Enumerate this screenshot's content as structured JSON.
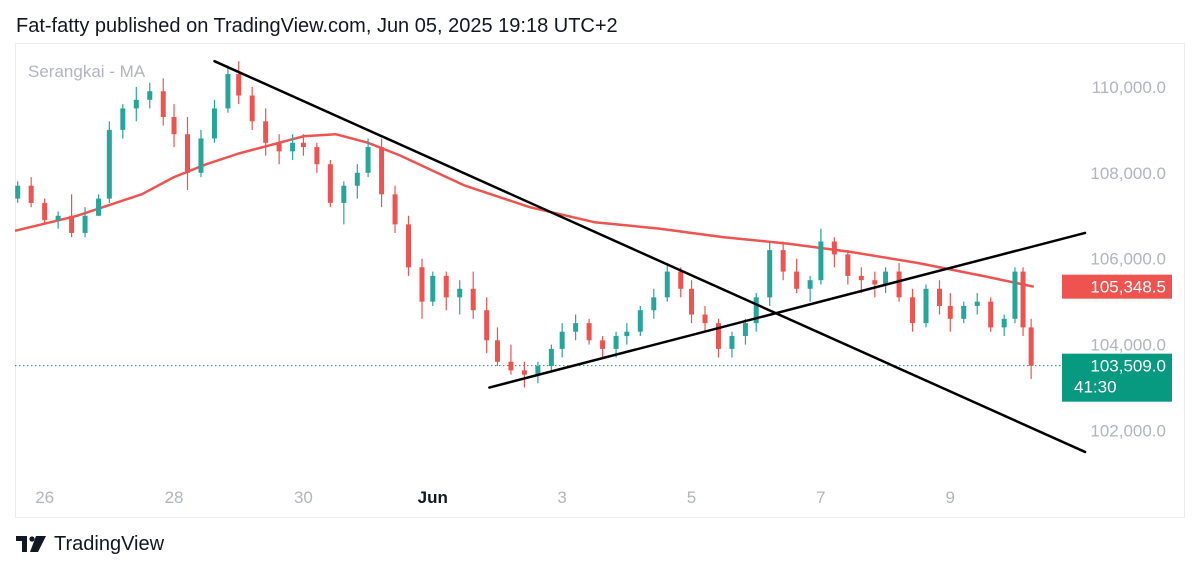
{
  "header": {
    "attribution": "Fat-fatty published on TradingView.com, Jun 05, 2025 19:18 UTC+2"
  },
  "footer": {
    "brand": "TradingView",
    "logo_icon": "tradingview-logo-icon"
  },
  "colors": {
    "up": "#26a69a",
    "down": "#ef5350",
    "ma": "#ef5350",
    "trendline": "#000000",
    "axis_text": "#b2b5be",
    "axis_text_dark": "#131722",
    "price_tag_ma": "#ef5350",
    "price_tag_last": "#089981",
    "last_price_line": "#089981"
  },
  "chart_data": {
    "type": "candlestick",
    "legend_text": "Serangkai - MA",
    "x_axis": {
      "ticks": [
        {
          "label": "26",
          "date": "2025-05-26",
          "bold": false
        },
        {
          "label": "28",
          "date": "2025-05-28",
          "bold": false
        },
        {
          "label": "30",
          "date": "2025-05-30",
          "bold": false
        },
        {
          "label": "Jun",
          "date": "2025-06-01",
          "bold": true
        },
        {
          "label": "3",
          "date": "2025-06-03",
          "bold": false
        },
        {
          "label": "5",
          "date": "2025-06-05",
          "bold": false
        },
        {
          "label": "7",
          "date": "2025-06-07",
          "bold": false
        },
        {
          "label": "9",
          "date": "2025-06-09",
          "bold": false
        }
      ],
      "range": [
        "2025-05-25T13:00",
        "2025-06-10T13:00"
      ]
    },
    "y_axis": {
      "ticks": [
        "110,000.0",
        "108,000.0",
        "106,000.0",
        "104,000.0",
        "102,000.0"
      ],
      "tick_values": [
        110000,
        108000,
        106000,
        104000,
        102000
      ],
      "range": [
        100800,
        111000
      ]
    },
    "price_tags": {
      "ma": {
        "label": "105,348.5",
        "value": 105348.5
      },
      "last": {
        "label": "103,509.0",
        "value": 103509,
        "countdown": "41:30"
      }
    },
    "candles": [
      [
        "2025-05-25T14:00",
        107400,
        107800,
        107300,
        107700
      ],
      [
        "2025-05-25T19:00",
        107700,
        107900,
        107200,
        107300
      ],
      [
        "2025-05-26T00:00",
        107300,
        107400,
        106800,
        106900
      ],
      [
        "2025-05-26T05:00",
        106900,
        107100,
        106700,
        107000
      ],
      [
        "2025-05-26T10:00",
        107000,
        107500,
        106500,
        106600
      ],
      [
        "2025-05-26T15:00",
        106600,
        107200,
        106500,
        107000
      ],
      [
        "2025-05-26T20:00",
        107000,
        107500,
        107000,
        107400
      ],
      [
        "2025-05-27T00:00",
        107400,
        109200,
        107300,
        109000
      ],
      [
        "2025-05-27T05:00",
        109000,
        109600,
        108800,
        109500
      ],
      [
        "2025-05-27T10:00",
        109500,
        110000,
        109200,
        109700
      ],
      [
        "2025-05-27T15:00",
        109700,
        110100,
        109500,
        109900
      ],
      [
        "2025-05-27T20:00",
        109900,
        110200,
        109100,
        109300
      ],
      [
        "2025-05-28T00:00",
        109300,
        109600,
        108600,
        108900
      ],
      [
        "2025-05-28T05:00",
        108900,
        109300,
        107600,
        108000
      ],
      [
        "2025-05-28T10:00",
        108000,
        109000,
        107900,
        108800
      ],
      [
        "2025-05-28T15:00",
        108800,
        109700,
        108700,
        109500
      ],
      [
        "2025-05-28T20:00",
        109500,
        110500,
        109400,
        110300
      ],
      [
        "2025-05-29T00:00",
        110300,
        110600,
        109600,
        109800
      ],
      [
        "2025-05-29T05:00",
        109800,
        110000,
        109000,
        109200
      ],
      [
        "2025-05-29T10:00",
        109200,
        109500,
        108400,
        108700
      ],
      [
        "2025-05-29T15:00",
        108700,
        108900,
        108200,
        108500
      ],
      [
        "2025-05-29T20:00",
        108500,
        108900,
        108300,
        108700
      ],
      [
        "2025-05-30T00:00",
        108700,
        108900,
        108400,
        108600
      ],
      [
        "2025-05-30T05:00",
        108600,
        108700,
        108000,
        108200
      ],
      [
        "2025-05-30T10:00",
        108200,
        108300,
        107200,
        107300
      ],
      [
        "2025-05-30T15:00",
        107300,
        107800,
        106800,
        107700
      ],
      [
        "2025-05-30T20:00",
        107700,
        108200,
        107400,
        108000
      ],
      [
        "2025-05-31T00:00",
        108000,
        108800,
        107900,
        108600
      ],
      [
        "2025-05-31T05:00",
        108600,
        108800,
        107200,
        107500
      ],
      [
        "2025-05-31T10:00",
        107500,
        107700,
        106600,
        106800
      ],
      [
        "2025-05-31T15:00",
        106800,
        107000,
        105600,
        105800
      ],
      [
        "2025-05-31T20:00",
        105800,
        106000,
        104600,
        105000
      ],
      [
        "2025-06-01T00:00",
        105000,
        105700,
        104900,
        105600
      ],
      [
        "2025-06-01T05:00",
        105600,
        105700,
        104800,
        105100
      ],
      [
        "2025-06-01T10:00",
        105100,
        105500,
        104700,
        105300
      ],
      [
        "2025-06-01T15:00",
        105300,
        105700,
        104600,
        104800
      ],
      [
        "2025-06-01T20:00",
        104800,
        105100,
        103800,
        104100
      ],
      [
        "2025-06-02T00:00",
        104100,
        104400,
        103500,
        103600
      ],
      [
        "2025-06-02T05:00",
        103600,
        104000,
        103300,
        103400
      ],
      [
        "2025-06-02T10:00",
        103400,
        103600,
        103000,
        103300
      ],
      [
        "2025-06-02T15:00",
        103300,
        103600,
        103100,
        103500
      ],
      [
        "2025-06-02T20:00",
        103500,
        104000,
        103400,
        103900
      ],
      [
        "2025-06-03T00:00",
        103900,
        104500,
        103700,
        104300
      ],
      [
        "2025-06-03T05:00",
        104300,
        104700,
        104100,
        104500
      ],
      [
        "2025-06-03T10:00",
        104500,
        104600,
        104000,
        104100
      ],
      [
        "2025-06-03T15:00",
        104100,
        104200,
        103700,
        103900
      ],
      [
        "2025-06-03T20:00",
        103900,
        104300,
        103700,
        104200
      ],
      [
        "2025-06-04T00:00",
        104200,
        104500,
        104000,
        104300
      ],
      [
        "2025-06-04T05:00",
        104300,
        104900,
        104200,
        104800
      ],
      [
        "2025-06-04T10:00",
        104800,
        105300,
        104600,
        105100
      ],
      [
        "2025-06-04T15:00",
        105100,
        105900,
        105000,
        105700
      ],
      [
        "2025-06-04T20:00",
        105700,
        105800,
        105100,
        105300
      ],
      [
        "2025-06-05T00:00",
        105300,
        105500,
        104500,
        104700
      ],
      [
        "2025-06-05T05:00",
        104700,
        104900,
        104300,
        104500
      ],
      [
        "2025-06-05T10:00",
        104500,
        104600,
        103700,
        103900
      ],
      [
        "2025-06-05T15:00",
        103900,
        104300,
        103700,
        104200
      ],
      [
        "2025-06-05T20:00",
        104200,
        104600,
        104000,
        104500
      ],
      [
        "2025-06-06T00:00",
        104500,
        105200,
        104300,
        105100
      ],
      [
        "2025-06-06T05:00",
        105100,
        106400,
        104900,
        106200
      ],
      [
        "2025-06-06T10:00",
        106200,
        106400,
        105500,
        105700
      ],
      [
        "2025-06-06T15:00",
        105700,
        106000,
        105200,
        105300
      ],
      [
        "2025-06-06T20:00",
        105300,
        105600,
        105000,
        105500
      ],
      [
        "2025-06-07T00:00",
        105500,
        106700,
        105400,
        106400
      ],
      [
        "2025-06-07T05:00",
        106400,
        106500,
        105800,
        106100
      ],
      [
        "2025-06-07T10:00",
        106100,
        106200,
        105400,
        105600
      ],
      [
        "2025-06-07T15:00",
        105600,
        105800,
        105200,
        105500
      ],
      [
        "2025-06-07T20:00",
        105500,
        105700,
        105100,
        105400
      ],
      [
        "2025-06-08T00:00",
        105400,
        105800,
        105200,
        105700
      ],
      [
        "2025-06-08T05:00",
        105700,
        105900,
        105000,
        105100
      ],
      [
        "2025-06-08T10:00",
        105100,
        105300,
        104300,
        104500
      ],
      [
        "2025-06-08T15:00",
        104500,
        105400,
        104400,
        105300
      ],
      [
        "2025-06-08T20:00",
        105300,
        105500,
        104700,
        104900
      ],
      [
        "2025-06-09T00:00",
        104900,
        105200,
        104300,
        104600
      ],
      [
        "2025-06-09T05:00",
        104600,
        105000,
        104500,
        104900
      ],
      [
        "2025-06-09T10:00",
        104900,
        105200,
        104700,
        105000
      ],
      [
        "2025-06-09T15:00",
        105000,
        105100,
        104300,
        104400
      ],
      [
        "2025-06-09T20:00",
        104400,
        104700,
        104200,
        104600
      ],
      [
        "2025-06-10T00:00",
        104600,
        105800,
        104500,
        105700
      ],
      [
        "2025-06-10T03:00",
        105700,
        105800,
        104200,
        104400
      ],
      [
        "2025-06-10T06:00",
        104400,
        104600,
        103200,
        103509
      ]
    ],
    "ma_series": {
      "name": "MA",
      "points": [
        [
          "2025-05-25T13:00",
          106650
        ],
        [
          "2025-05-26T12:00",
          107000
        ],
        [
          "2025-05-27T12:00",
          107500
        ],
        [
          "2025-05-28T00:00",
          107900
        ],
        [
          "2025-05-28T12:00",
          108200
        ],
        [
          "2025-05-29T00:00",
          108450
        ],
        [
          "2025-05-29T12:00",
          108650
        ],
        [
          "2025-05-30T00:00",
          108850
        ],
        [
          "2025-05-30T12:00",
          108900
        ],
        [
          "2025-05-31T00:00",
          108700
        ],
        [
          "2025-05-31T12:00",
          108400
        ],
        [
          "2025-06-01T00:00",
          108050
        ],
        [
          "2025-06-01T12:00",
          107700
        ],
        [
          "2025-06-02T12:00",
          107200
        ],
        [
          "2025-06-03T12:00",
          106850
        ],
        [
          "2025-06-04T12:00",
          106700
        ],
        [
          "2025-06-05T12:00",
          106500
        ],
        [
          "2025-06-06T12:00",
          106350
        ],
        [
          "2025-06-07T12:00",
          106150
        ],
        [
          "2025-06-08T12:00",
          105900
        ],
        [
          "2025-06-09T12:00",
          105600
        ],
        [
          "2025-06-10T07:00",
          105348.5
        ]
      ]
    },
    "trendlines": [
      {
        "name": "descending",
        "from": [
          "2025-05-28T15:00",
          110600
        ],
        "to": [
          "2025-06-11T02:00",
          101500
        ]
      },
      {
        "name": "ascending",
        "from": [
          "2025-06-01T21:00",
          103000
        ],
        "to": [
          "2025-06-11T02:00",
          106600
        ]
      }
    ],
    "grid": false
  }
}
